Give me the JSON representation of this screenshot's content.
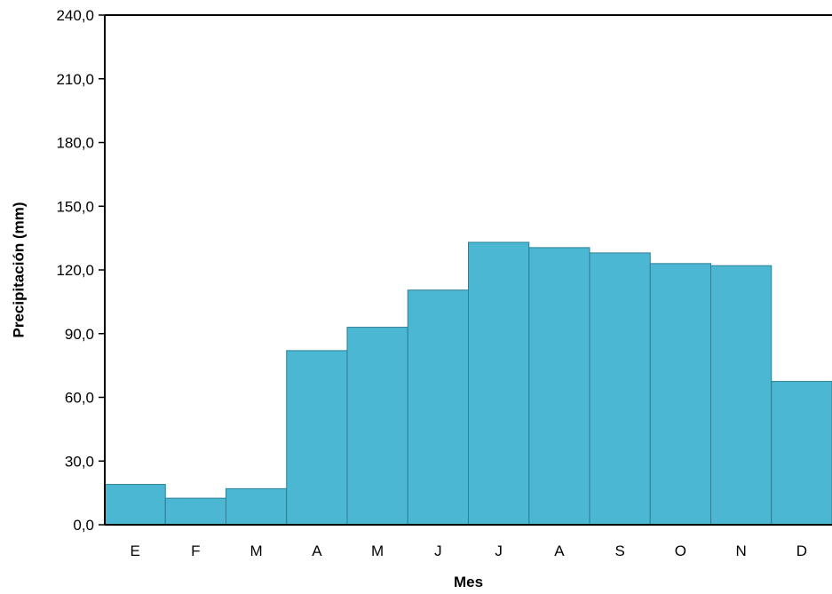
{
  "chart_data": {
    "type": "bar",
    "title": "",
    "xlabel": "Mes",
    "ylabel": "Precipitación (mm)",
    "categories": [
      "E",
      "F",
      "M",
      "A",
      "M",
      "J",
      "J",
      "A",
      "S",
      "O",
      "N",
      "D"
    ],
    "values": [
      19.0,
      12.5,
      17.0,
      82.0,
      93.0,
      110.5,
      133.0,
      130.5,
      128.0,
      123.0,
      122.0,
      67.5
    ],
    "ylim": [
      0,
      240
    ],
    "yticks": [
      0,
      30,
      60,
      90,
      120,
      150,
      180,
      210,
      240
    ],
    "ytick_labels": [
      "0,0",
      "30,0",
      "60,0",
      "90,0",
      "120,0",
      "150,0",
      "180,0",
      "210,0",
      "240,0"
    ],
    "grid": false,
    "legend": "none",
    "colors": {
      "bar_fill": "#4bb7d3",
      "bar_stroke": "#2d7f95",
      "axis": "#000000"
    }
  }
}
